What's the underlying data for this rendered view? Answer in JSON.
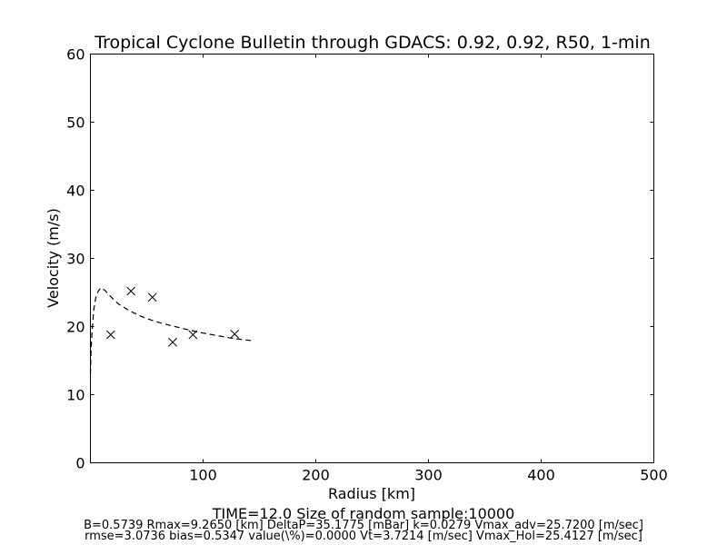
{
  "chart_data": {
    "type": "scatter",
    "title": "Tropical Cyclone Bulletin through GDACS: 0.92, 0.92, R50, 1-min",
    "xlabel": "Radius [km]",
    "ylabel": "Velocity (m/s)",
    "xlim": [
      0,
      500
    ],
    "ylim": [
      0,
      60
    ],
    "x_ticks": [
      100,
      200,
      300,
      400,
      500
    ],
    "y_ticks": [
      0,
      10,
      20,
      30,
      40,
      50,
      60
    ],
    "grid": false,
    "legend": "none",
    "series": [
      {
        "marker": "x",
        "points": [
          [
            18,
            18.8
          ],
          [
            36,
            25.2
          ],
          [
            55,
            24.3
          ],
          [
            73,
            17.7
          ],
          [
            91,
            18.8
          ],
          [
            128,
            18.9
          ]
        ]
      },
      {
        "line": "dashed",
        "points": [
          [
            0,
            13
          ],
          [
            0.5,
            16
          ],
          [
            1,
            18
          ],
          [
            2,
            20.5
          ],
          [
            3,
            22.5
          ],
          [
            5,
            24.5
          ],
          [
            7,
            25.2
          ],
          [
            9.3,
            25.7
          ],
          [
            13,
            25.3
          ],
          [
            18,
            24.4
          ],
          [
            25,
            23.3
          ],
          [
            35,
            22.3
          ],
          [
            45,
            21.5
          ],
          [
            55,
            20.9
          ],
          [
            65,
            20.4
          ],
          [
            75,
            20.0
          ],
          [
            85,
            19.6
          ],
          [
            95,
            19.2
          ],
          [
            105,
            18.9
          ],
          [
            115,
            18.6
          ],
          [
            125,
            18.3
          ],
          [
            135,
            18.1
          ],
          [
            145,
            17.9
          ]
        ]
      }
    ],
    "footer": {
      "line1": "TIME=12.0     Size of random sample:10000",
      "line2": "B=0.5739 Rmax=9.2650 [km]  DeltaP=35.1775 [mBar] k=0.0279 Vmax_adv=25.7200 [m/sec]",
      "line3": "rmse=3.0736 bias=0.5347 value(\\%)=0.0000 Vt=3.7214 [m/sec] Vmax_Hol=25.4127 [m/sec]"
    }
  }
}
